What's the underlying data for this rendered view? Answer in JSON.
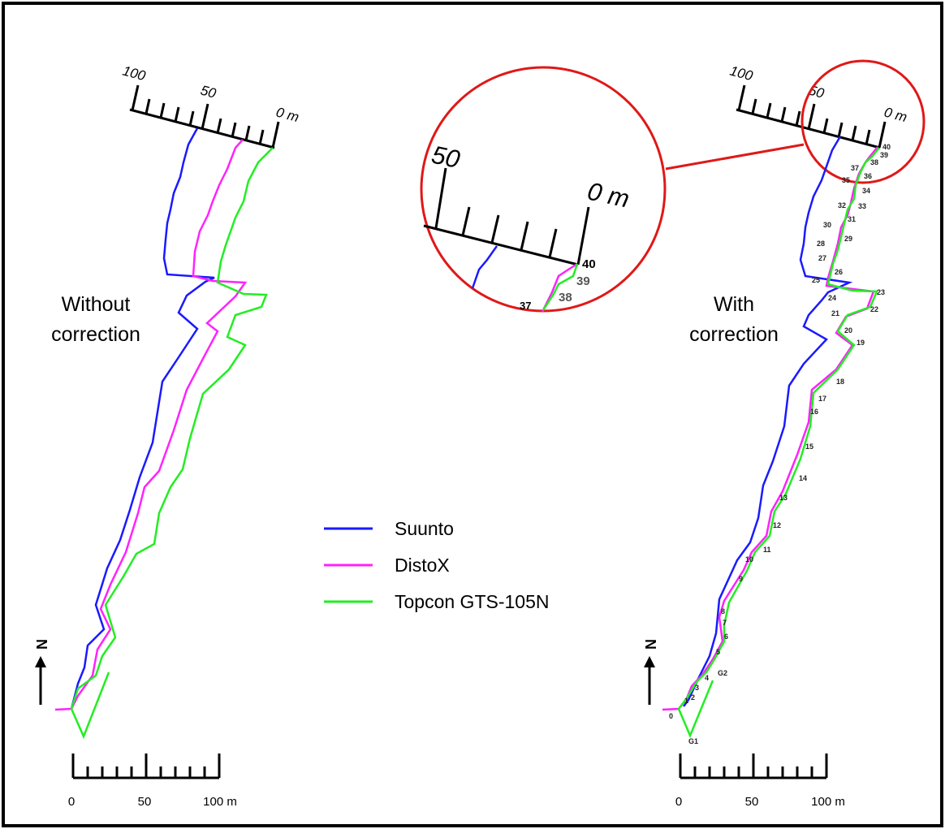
{
  "panels": {
    "left_label": [
      "Without",
      "correction"
    ],
    "right_label": [
      "With",
      "correction"
    ]
  },
  "scale_bar": {
    "ticks": [
      "0",
      "50",
      "100 m"
    ]
  },
  "rotated_scale": {
    "ticks": [
      "100",
      "50",
      "0 m"
    ]
  },
  "zoom_scale": {
    "ticks": [
      "50",
      "0 m"
    ],
    "stations": [
      "40",
      "39",
      "38",
      "37"
    ]
  },
  "north_arrow": {
    "label": "N"
  },
  "legend": {
    "items": [
      {
        "name": "Suunto",
        "color": "#1a1aff"
      },
      {
        "name": "DistoX",
        "color": "#ff22ff"
      },
      {
        "name": "Topcon GTS-105N",
        "color": "#22ee22"
      }
    ]
  },
  "station_labels": [
    "40",
    "39",
    "38",
    "37",
    "36",
    "35",
    "34",
    "33",
    "32",
    "31",
    "30",
    "29",
    "28",
    "27",
    "26",
    "25",
    "24",
    "23",
    "22",
    "21",
    "20",
    "19",
    "18",
    "17",
    "16",
    "15",
    "14",
    "13",
    "12",
    "11",
    "10",
    "9",
    "8",
    "7",
    "6",
    "5",
    "4",
    "3",
    "2",
    "1",
    "0",
    "G1",
    "G2"
  ],
  "colors": {
    "suunto": "#1a1aff",
    "distox": "#ff22ff",
    "topcon": "#22ee22",
    "highlight": "#e01818"
  }
}
